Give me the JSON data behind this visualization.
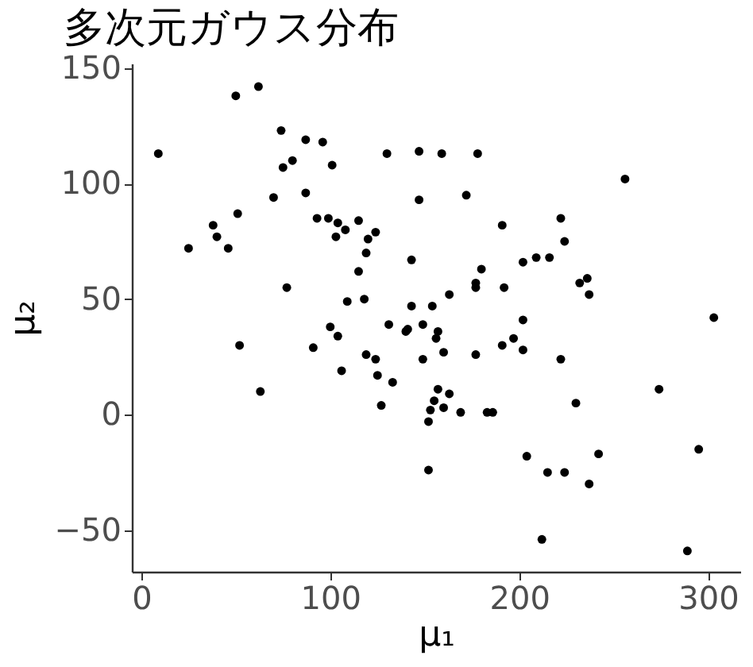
{
  "chart_data": {
    "type": "scatter",
    "title": "多次元ガウス分布",
    "xlabel": "μ₁",
    "ylabel": "μ₂",
    "xlim": [
      -5,
      317
    ],
    "ylim": [
      -68,
      152
    ],
    "xticks": [
      0,
      100,
      200,
      300
    ],
    "yticks": [
      -50,
      0,
      50,
      100,
      150
    ],
    "grid": false,
    "marker": "circle",
    "series": [
      {
        "color": "#000000",
        "x": [
          9,
          25,
          38,
          40,
          46,
          50,
          62,
          51,
          74,
          75,
          80,
          70,
          87,
          96,
          101,
          87,
          77,
          93,
          99,
          104,
          108,
          103,
          115,
          124,
          120,
          119,
          115,
          109,
          118,
          52,
          63,
          91,
          100,
          104,
          106,
          119,
          124,
          125,
          127,
          130,
          147,
          159,
          178,
          256,
          147,
          172,
          191,
          222,
          224,
          143,
          180,
          177,
          177,
          192,
          202,
          209,
          216,
          232,
          236,
          237,
          143,
          154,
          163,
          303,
          131,
          149,
          140,
          141,
          157,
          156,
          202,
          197,
          191,
          202,
          133,
          149,
          160,
          177,
          222,
          157,
          163,
          155,
          153,
          160,
          152,
          169,
          183,
          186,
          230,
          274,
          152,
          204,
          215,
          224,
          242,
          237,
          295,
          212,
          289
        ],
        "values": [
          113,
          72,
          82,
          77,
          72,
          138,
          142,
          87,
          123,
          107,
          110,
          94,
          119,
          118,
          108,
          96,
          55,
          85,
          85,
          83,
          80,
          77,
          84,
          79,
          76,
          70,
          62,
          49,
          50,
          30,
          10,
          29,
          38,
          34,
          19,
          26,
          24,
          17,
          4,
          113,
          114,
          113,
          113,
          102,
          93,
          95,
          82,
          85,
          75,
          67,
          63,
          57,
          55,
          55,
          66,
          68,
          68,
          57,
          59,
          52,
          47,
          47,
          52,
          42,
          39,
          39,
          36,
          37,
          36,
          33,
          41,
          33,
          30,
          28,
          14,
          24,
          27,
          26,
          24,
          11,
          9,
          6,
          2,
          3,
          -3,
          1,
          1,
          1,
          5,
          11,
          -24,
          -18,
          -25,
          -25,
          -17,
          -30,
          -15,
          -54,
          -59
        ]
      }
    ]
  }
}
